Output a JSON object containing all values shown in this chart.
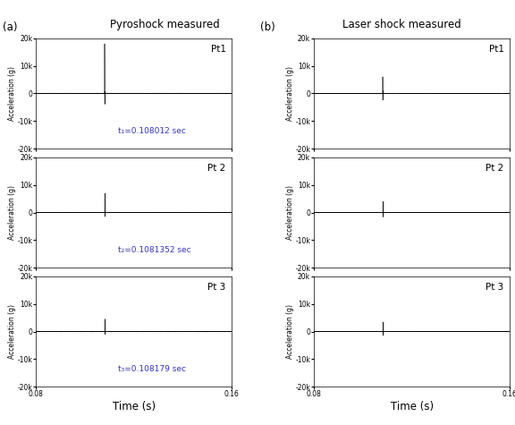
{
  "title_a": "Pyroshock measured",
  "title_b": "Laser shock measured",
  "label_a": "(a)",
  "label_b": "(b)",
  "xlabel": "Time (s)",
  "ylabel": "Acceleration (g)",
  "xlim": [
    0.08,
    0.16
  ],
  "ylim": [
    -20000,
    20000
  ],
  "yticks": [
    -20000,
    -10000,
    0,
    10000,
    20000
  ],
  "ytick_labels": [
    "-20k",
    "-10k",
    "0",
    "10k",
    "20k"
  ],
  "point_labels_a": [
    "Pt1",
    "Pt 2",
    "Pt 3"
  ],
  "point_labels_b": [
    "Pt1",
    "Pt 2",
    "Pt 3"
  ],
  "time_labels_a": [
    "t₁=0.108012 sec",
    "t₂=0.1081352 sec",
    "t₃=0.108179 sec"
  ],
  "time_label_color": "#3333cc",
  "spike_times_a": [
    0.108012,
    0.1081352,
    0.108179
  ],
  "spike_times_b": [
    0.10805,
    0.10815,
    0.1082
  ],
  "spike_amplitudes_a": [
    18000,
    7000,
    4500
  ],
  "spike_amplitudes_b": [
    6000,
    4000,
    3500
  ],
  "background_color": "#ffffff",
  "line_color": "#000000",
  "title_fontsize": 8.5,
  "label_fontsize": 8.5,
  "tick_fontsize": 5.5,
  "pt_fontsize": 7.5,
  "time_fontsize": 6.5
}
